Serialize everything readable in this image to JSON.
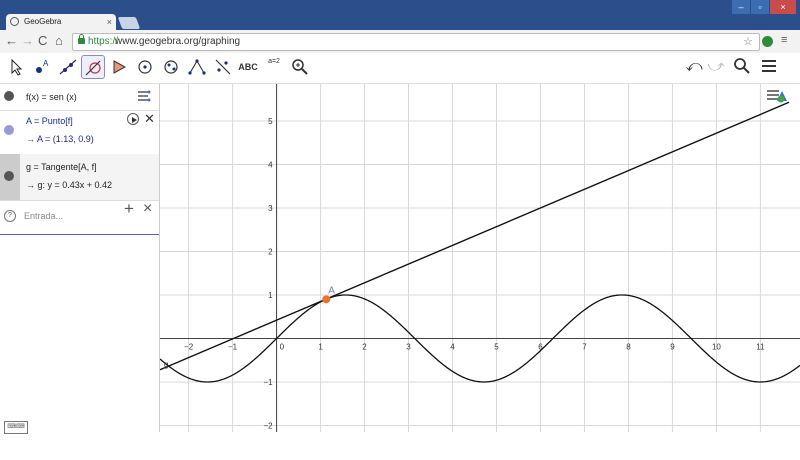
{
  "browser": {
    "tab_title": "GeoGebra",
    "tab_close": "×",
    "url_protocol": "https://",
    "url_rest": "www.geogebra.org/graphing",
    "window_buttons": [
      "–",
      "▫",
      "×"
    ]
  },
  "toolbar": {
    "text_tool": "ABC",
    "slider_tool": "a=2",
    "undo_icon": "undo-icon",
    "redo_icon": "redo-icon",
    "search_icon": "search-icon",
    "menu_icon": "menu-icon"
  },
  "algebra": {
    "items": [
      {
        "definition": "f(x)  =  sen (x)",
        "value": "",
        "color": "#555555"
      },
      {
        "definition": "A = Punto[f]",
        "value": "→     A = (1.13, 0.9)",
        "color": "#9a9ad8"
      },
      {
        "definition": "g = Tangente[A, f]",
        "value": "→    g: y = 0.43x + 0.42",
        "color": "#555555"
      }
    ],
    "input_placeholder": "Entrada...",
    "input_add": "+",
    "input_close": "×"
  },
  "graph": {
    "x_ticks": [
      "−2",
      "−1",
      "0",
      "1",
      "2",
      "3",
      "4",
      "5",
      "6",
      "7",
      "8",
      "9",
      "10",
      "11"
    ],
    "y_ticks": [
      "−2",
      "−1",
      "1",
      "2",
      "3",
      "4",
      "5"
    ],
    "point_label": "A",
    "tangent_label": "g",
    "point_x": 1.13,
    "point_y": 0.9,
    "tangent_slope": 0.43,
    "tangent_intercept": 0.42,
    "function": "sin",
    "x_range": [
      -2.65,
      11.9
    ],
    "y_range": [
      -2.15,
      5.85
    ],
    "point_color": "#e8742a",
    "point_label_color": "#7a7ad8"
  }
}
